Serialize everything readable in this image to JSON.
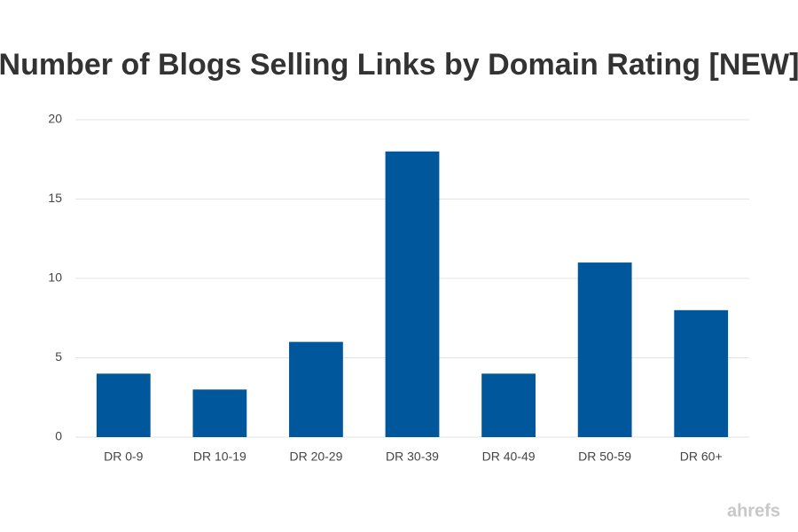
{
  "chart_data": {
    "type": "bar",
    "title": "Number of Blogs Selling Links by Domain Rating [NEW]",
    "categories": [
      "DR 0-9",
      "DR 10-19",
      "DR 20-29",
      "DR 30-39",
      "DR 40-49",
      "DR 50-59",
      "DR 60+"
    ],
    "values": [
      4,
      3,
      6,
      18,
      4,
      11,
      8
    ],
    "color": "#00579b",
    "ylim": [
      0,
      20
    ],
    "yticks": [
      0,
      5,
      10,
      15,
      20
    ],
    "grid": true,
    "watermark": "ahrefs"
  }
}
